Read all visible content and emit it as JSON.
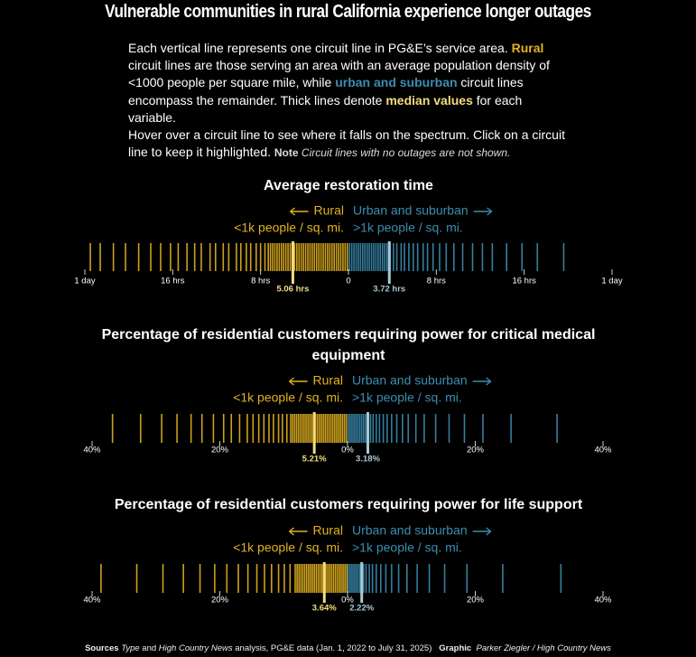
{
  "headline": "Vulnerable communities in rural California experience longer outages",
  "intro": {
    "p1": [
      "Each vertical line represents one circuit line in PG&E’s service area. ",
      "Rural",
      " circuit lines are those serving an area with an average population density of <1000 people per square mile, while ",
      "urban and suburban",
      " circuit lines encompass the remainder. Thick lines denote ",
      "median values",
      " for each variable."
    ],
    "p2": [
      "Hover over a circuit line to see where it falls on the spectrum. Click on a circuit line to keep it highlighted. ",
      "Note",
      " Circuit lines with no outages are not shown."
    ]
  },
  "chart_data": [
    {
      "type": "strip",
      "title": "Average restoration time",
      "xlim": [
        0,
        24
      ],
      "xticks": [
        {
          "value": 24,
          "label": "1 day"
        },
        {
          "value": 16,
          "label": "16 hrs"
        },
        {
          "value": 8,
          "label": "8 hrs"
        },
        0
      ],
      "x2ticks": [
        {
          "value": 8,
          "label": "8 hrs"
        },
        {
          "value": 16,
          "label": "16 hrs"
        },
        {
          "value": 24,
          "label": "1 day"
        }
      ],
      "series": [
        {
          "name": "Rural",
          "sublabel": "<1k people / sq. mi.",
          "color": "#e3b21f",
          "median_color": "#f5dc7e",
          "median": 5.06,
          "median_label": "5.06 hrs",
          "values": [
            0.1,
            0.3,
            0.5,
            0.7,
            0.9,
            1.1,
            1.3,
            1.5,
            1.7,
            1.9,
            2.1,
            2.3,
            2.5,
            2.7,
            2.9,
            3.1,
            3.3,
            3.5,
            3.7,
            3.9,
            4.1,
            4.3,
            4.5,
            4.7,
            4.9,
            5.1,
            5.3,
            5.5,
            5.7,
            5.9,
            6.1,
            6.3,
            6.5,
            6.7,
            6.9,
            7.1,
            7.3,
            7.6,
            8.0,
            8.4,
            8.9,
            9.3,
            9.8,
            10.2,
            10.9,
            11.4,
            12.1,
            12.6,
            13.4,
            14.0,
            14.7,
            15.5,
            16.2,
            17.1,
            18.0,
            19.1,
            20.3,
            21.4,
            22.6,
            23.5
          ]
        },
        {
          "name": "Urban and suburban",
          "sublabel": ">1k people / sq. mi.",
          "color": "#3b8db0",
          "median_color": "#a9c9d6",
          "median": 3.72,
          "median_label": "3.72 hrs",
          "values": [
            0.1,
            0.3,
            0.5,
            0.7,
            0.9,
            1.1,
            1.3,
            1.5,
            1.7,
            1.9,
            2.1,
            2.3,
            2.5,
            2.7,
            2.9,
            3.1,
            3.3,
            3.5,
            3.8,
            4.1,
            4.4,
            4.8,
            5.1,
            5.5,
            5.9,
            6.3,
            6.8,
            7.2,
            7.7,
            8.3,
            8.9,
            9.6,
            10.4,
            11.3,
            12.2,
            13.1,
            14.4,
            15.8,
            17.2,
            19.6
          ]
        }
      ]
    },
    {
      "type": "strip",
      "title": "Percentage of residential customers requiring power for critical medical equipment",
      "xlim": [
        0,
        40
      ],
      "xticks": [
        {
          "value": 40,
          "label": "40%"
        },
        {
          "value": 20,
          "label": "20%"
        },
        {
          "value": 0,
          "label": "0%"
        }
      ],
      "x2ticks": [
        {
          "value": 20,
          "label": "20%"
        },
        {
          "value": 40,
          "label": "40%"
        }
      ],
      "series": [
        {
          "name": "Rural",
          "sublabel": "<1k people / sq. mi.",
          "color": "#e3b21f",
          "median_color": "#f5dc7e",
          "median": 5.21,
          "median_label": "5.21%",
          "values": [
            0.2,
            0.5,
            0.8,
            1.1,
            1.4,
            1.7,
            2.0,
            2.3,
            2.6,
            2.9,
            3.2,
            3.5,
            3.8,
            4.1,
            4.4,
            4.7,
            5.0,
            5.3,
            5.6,
            5.9,
            6.2,
            6.5,
            6.8,
            7.1,
            7.4,
            7.7,
            8.0,
            8.3,
            8.6,
            8.9,
            9.5,
            10.2,
            10.8,
            11.6,
            12.3,
            13.1,
            13.9,
            14.8,
            15.7,
            16.9,
            18.2,
            19.4,
            21.0,
            22.8,
            24.5,
            26.7,
            29.1,
            32.4,
            36.8
          ]
        },
        {
          "name": "Urban and suburban",
          "sublabel": ">1k people / sq. mi.",
          "color": "#3b8db0",
          "median_color": "#a9c9d6",
          "median": 3.18,
          "median_label": "3.18%",
          "values": [
            0.1,
            0.4,
            0.7,
            1.0,
            1.3,
            1.6,
            1.9,
            2.2,
            2.5,
            2.8,
            3.2,
            3.6,
            4.0,
            4.5,
            5.0,
            5.6,
            6.2,
            6.9,
            7.7,
            8.6,
            9.5,
            10.7,
            12.0,
            13.8,
            15.9,
            18.3,
            21.2,
            25.6,
            32.8
          ]
        }
      ]
    },
    {
      "type": "strip",
      "title": "Percentage of residential customers requiring power for life support",
      "xlim": [
        0,
        40
      ],
      "xticks": [
        {
          "value": 40,
          "label": "40%"
        },
        {
          "value": 20,
          "label": "20%"
        },
        {
          "value": 0,
          "label": "0%"
        }
      ],
      "x2ticks": [
        {
          "value": 20,
          "label": "20%"
        },
        {
          "value": 40,
          "label": "40%"
        }
      ],
      "series": [
        {
          "name": "Rural",
          "sublabel": "<1k people / sq. mi.",
          "color": "#e3b21f",
          "median_color": "#f5dc7e",
          "median": 3.64,
          "median_label": "3.64%",
          "values": [
            0.1,
            0.4,
            0.7,
            1.0,
            1.3,
            1.6,
            1.9,
            2.2,
            2.5,
            2.8,
            3.1,
            3.4,
            3.7,
            4.0,
            4.3,
            4.6,
            4.9,
            5.2,
            5.5,
            5.8,
            6.1,
            6.4,
            6.7,
            7.0,
            7.3,
            7.6,
            7.9,
            8.2,
            9.0,
            9.9,
            10.8,
            11.9,
            13.0,
            14.2,
            15.6,
            17.1,
            18.9,
            20.8,
            23.1,
            25.7,
            28.9,
            33.0,
            38.6
          ]
        },
        {
          "name": "Urban and suburban",
          "sublabel": ">1k people / sq. mi.",
          "color": "#3b8db0",
          "median_color": "#a9c9d6",
          "median": 2.22,
          "median_label": "2.22%",
          "values": [
            0.1,
            0.4,
            0.7,
            1.0,
            1.3,
            1.6,
            1.9,
            2.2,
            2.5,
            2.9,
            3.4,
            3.9,
            4.5,
            5.2,
            6.0,
            6.9,
            8.0,
            9.3,
            10.9,
            12.8,
            15.2,
            18.7,
            24.3,
            33.4
          ]
        }
      ]
    }
  ],
  "sources": {
    "label": "Sources",
    "a": "Type",
    "b": " and ",
    "c": "High Country News",
    "d": " analysis, PG&E data (Jan. 1, 2022 to July 31, 2025)",
    "graphic_label": "Graphic",
    "graphic": "Parker Ziegler / High Country News"
  }
}
